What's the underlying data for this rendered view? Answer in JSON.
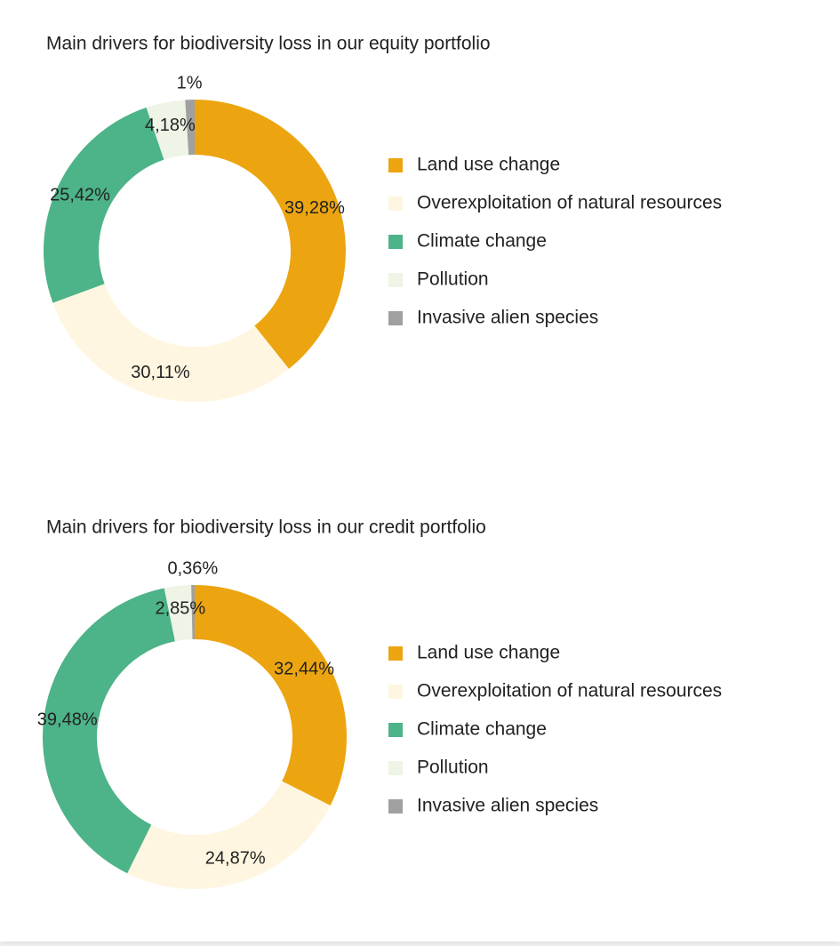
{
  "chart_data": [
    {
      "type": "donut",
      "title": "Main drivers for biodiversity loss in our equity portfolio",
      "categories": [
        "Land use change",
        "Overexploitation of natural resources",
        "Climate change",
        "Pollution",
        "Invasive alien species"
      ],
      "values": [
        39.28,
        30.11,
        25.42,
        4.18,
        1
      ],
      "value_labels": [
        "39,28%",
        "30,11%",
        "25,42%",
        "4,18%",
        "1%"
      ],
      "colors": [
        "#eca511",
        "#fef6e0",
        "#4db388",
        "#eef4e6",
        "#a0a0a0"
      ],
      "legend": "right"
    },
    {
      "type": "donut",
      "title": "Main drivers for biodiversity loss in our credit portfolio",
      "categories": [
        "Land use change",
        "Overexploitation of natural resources",
        "Climate change",
        "Pollution",
        "Invasive alien species"
      ],
      "values": [
        32.44,
        24.87,
        39.48,
        2.85,
        0.36
      ],
      "value_labels": [
        "32,44%",
        "24,87%",
        "39,48%",
        "2,85%",
        "0,36%"
      ],
      "colors": [
        "#eca511",
        "#fef6e0",
        "#4db388",
        "#eef4e6",
        "#a0a0a0"
      ],
      "legend": "right"
    }
  ]
}
